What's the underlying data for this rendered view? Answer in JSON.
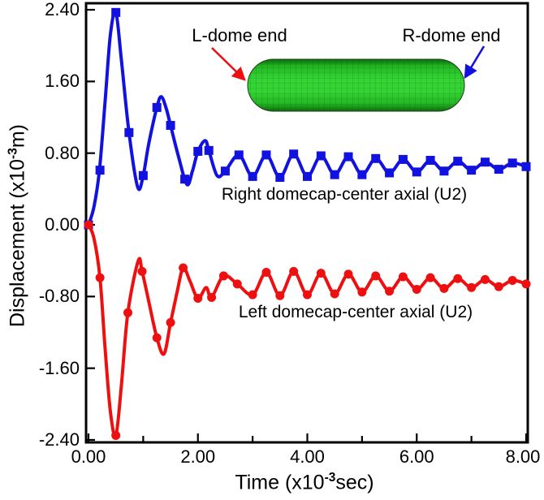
{
  "colors": {
    "blue_series": "#1212e0",
    "red_series": "#ee1010",
    "axis": "#000000",
    "capsule_green_bright": "#35d435",
    "capsule_green_mid": "#24b824",
    "capsule_green_dark": "#0c6e0c",
    "capsule_mesh": "#0a4d0a"
  },
  "axes": {
    "ylabel": {
      "prefix": "Displacement (x10",
      "exp": "-3",
      "suffix": "m)"
    },
    "xlabel": {
      "prefix": "Time (x10",
      "exp": "-3",
      "suffix": "sec)"
    },
    "y_tick_labels": [
      "2.40",
      "1.60",
      "0.80",
      "0.00",
      "-0.80",
      "-1.60",
      "-2.40"
    ],
    "y_tick_values": [
      2.4,
      1.6,
      0.8,
      0.0,
      -0.8,
      -1.6,
      -2.4
    ],
    "x_tick_labels": [
      "0.00",
      "2.00",
      "4.00",
      "6.00",
      "8.00"
    ],
    "x_tick_values": [
      0,
      2,
      4,
      6,
      8
    ],
    "x_minor_tick_values": [
      1,
      3,
      5,
      7
    ],
    "xlim": [
      0,
      8
    ],
    "ylim": [
      -2.4,
      2.4
    ]
  },
  "annotations": {
    "l_dome_label": "L-dome end",
    "r_dome_label": "R-dome end",
    "right_series_label": "Right domecap-center axial (U2)",
    "left_series_label": "Left domecap-center axial (U2)"
  },
  "chart_data": {
    "type": "line",
    "title": "",
    "xlabel": "Time (x10^-3 sec)",
    "ylabel": "Displacement (x10^-3 m)",
    "xlim": [
      0,
      8
    ],
    "ylim": [
      -2.4,
      2.4
    ],
    "grid": false,
    "legend": "in-plot text annotations",
    "series": [
      {
        "name": "Right domecap-center axial (U2)",
        "color": "#1212e0",
        "marker": "square",
        "x": [
          0,
          0.1,
          0.2,
          0.3,
          0.4,
          0.5,
          0.6,
          0.74,
          0.9,
          1.0,
          1.1,
          1.25,
          1.33,
          1.42,
          1.5,
          1.65,
          1.8,
          1.9,
          2.0,
          2.13,
          2.2,
          2.35,
          2.5,
          2.75,
          3.0,
          3.25,
          3.5,
          3.75,
          4.0,
          4.25,
          4.5,
          4.75,
          5.0,
          5.25,
          5.5,
          5.75,
          6.0,
          6.25,
          6.5,
          6.75,
          7.0,
          7.25,
          7.5,
          7.75,
          8.0
        ],
        "y": [
          0,
          0.2,
          0.61,
          1.35,
          2.12,
          2.37,
          1.85,
          1.03,
          0.42,
          0.55,
          0.9,
          1.31,
          1.43,
          1.3,
          1.11,
          0.75,
          0.45,
          0.6,
          0.82,
          0.94,
          0.83,
          0.55,
          0.6,
          0.78,
          0.54,
          0.78,
          0.53,
          0.79,
          0.54,
          0.77,
          0.56,
          0.76,
          0.56,
          0.74,
          0.58,
          0.73,
          0.59,
          0.72,
          0.6,
          0.71,
          0.61,
          0.7,
          0.62,
          0.69,
          0.65
        ],
        "marker_x": [
          0,
          0.21,
          0.5,
          0.74,
          1.0,
          1.25,
          1.5,
          1.76,
          2.0,
          2.2,
          2.5,
          2.75,
          3.0,
          3.25,
          3.5,
          3.75,
          4.0,
          4.25,
          4.5,
          4.75,
          5.0,
          5.25,
          5.5,
          5.75,
          6.0,
          6.25,
          6.5,
          6.75,
          7.0,
          7.25,
          7.5,
          7.75,
          8.0
        ],
        "marker_y": [
          0,
          0.61,
          2.37,
          1.03,
          0.55,
          1.31,
          1.11,
          0.51,
          0.82,
          0.83,
          0.6,
          0.78,
          0.54,
          0.78,
          0.53,
          0.79,
          0.54,
          0.77,
          0.56,
          0.76,
          0.56,
          0.74,
          0.58,
          0.73,
          0.59,
          0.72,
          0.6,
          0.71,
          0.61,
          0.7,
          0.62,
          0.69,
          0.65
        ]
      },
      {
        "name": "Left domecap-center axial (U2)",
        "color": "#ee1010",
        "marker": "circle",
        "x": [
          0,
          0.1,
          0.21,
          0.3,
          0.4,
          0.5,
          0.6,
          0.72,
          0.91,
          0.98,
          1.1,
          1.25,
          1.38,
          1.5,
          1.62,
          1.73,
          1.85,
          2.0,
          2.15,
          2.25,
          2.47,
          2.72,
          3.0,
          3.25,
          3.5,
          3.75,
          4.0,
          4.25,
          4.5,
          4.75,
          5.0,
          5.25,
          5.5,
          5.75,
          6.0,
          6.25,
          6.5,
          6.75,
          7.0,
          7.25,
          7.5,
          7.75,
          8.0
        ],
        "y": [
          0,
          -0.15,
          -0.59,
          -1.35,
          -2.08,
          -2.35,
          -1.8,
          -0.98,
          -0.4,
          -0.52,
          -0.85,
          -1.26,
          -1.44,
          -1.09,
          -0.75,
          -0.48,
          -0.62,
          -0.82,
          -0.7,
          -0.81,
          -0.57,
          -0.66,
          -0.78,
          -0.53,
          -0.79,
          -0.52,
          -0.78,
          -0.54,
          -0.77,
          -0.55,
          -0.75,
          -0.57,
          -0.74,
          -0.58,
          -0.72,
          -0.59,
          -0.71,
          -0.6,
          -0.7,
          -0.61,
          -0.69,
          -0.62,
          -0.66
        ],
        "marker_x": [
          0,
          0.21,
          0.5,
          0.72,
          0.98,
          1.25,
          1.5,
          1.73,
          2.0,
          2.25,
          2.47,
          2.72,
          3.0,
          3.25,
          3.5,
          3.75,
          4.0,
          4.25,
          4.5,
          4.75,
          5.0,
          5.25,
          5.5,
          5.75,
          6.0,
          6.25,
          6.5,
          6.75,
          7.0,
          7.25,
          7.5,
          7.75,
          8.0
        ],
        "marker_y": [
          0,
          -0.59,
          -2.35,
          -0.98,
          -0.52,
          -1.26,
          -1.09,
          -0.48,
          -0.82,
          -0.81,
          -0.57,
          -0.66,
          -0.78,
          -0.53,
          -0.79,
          -0.52,
          -0.78,
          -0.54,
          -0.77,
          -0.55,
          -0.75,
          -0.57,
          -0.74,
          -0.58,
          -0.72,
          -0.59,
          -0.71,
          -0.6,
          -0.7,
          -0.61,
          -0.69,
          -0.62,
          -0.66
        ]
      }
    ],
    "inset": {
      "description": "green meshed capsule (dome-ended cylinder) model",
      "l_arrow_color": "#ee1010",
      "r_arrow_color": "#1212e0"
    }
  }
}
